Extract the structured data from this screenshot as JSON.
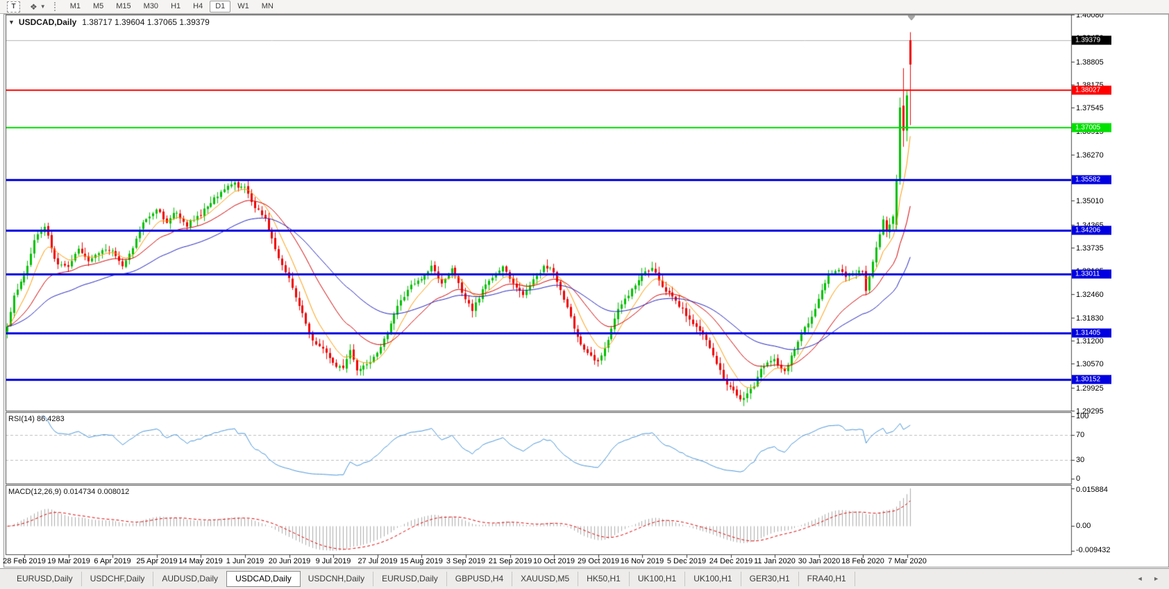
{
  "toolbar": {
    "text_tool_label": "T",
    "indicator_icon": "arrange-icon",
    "dropdown_caret": "caret-down-icon",
    "timeframes": [
      "M1",
      "M5",
      "M15",
      "M30",
      "H1",
      "H4",
      "D1",
      "W1",
      "MN"
    ],
    "active_timeframe": "D1"
  },
  "chart": {
    "title_symbol": "USDCAD,Daily",
    "title_ohlc": "1.38717 1.39604 1.37065 1.39379"
  },
  "price_axis": {
    "ticks": [
      "1.40080",
      "1.39450",
      "1.38805",
      "1.38175",
      "1.37545",
      "1.36915",
      "1.36270",
      "1.35640",
      "1.35010",
      "1.34365",
      "1.33735",
      "1.33105",
      "1.32460",
      "1.31830",
      "1.31200",
      "1.30570",
      "1.29925",
      "1.29295"
    ],
    "tick_values": [
      1.4008,
      1.3945,
      1.38805,
      1.38175,
      1.37545,
      1.36915,
      1.3627,
      1.3564,
      1.3501,
      1.34365,
      1.33735,
      1.33105,
      1.3246,
      1.3183,
      1.312,
      1.3057,
      1.29925,
      1.29295
    ],
    "current_price_badge": {
      "label": "1.39379",
      "value": 1.39379,
      "bg": "#000000"
    }
  },
  "chart_data": {
    "type": "candlestick",
    "symbol": "USDCAD",
    "timeframe": "Daily",
    "last_ohlc": {
      "open": 1.38717,
      "high": 1.39604,
      "low": 1.37065,
      "close": 1.39379
    },
    "x_labels": [
      "28 Feb 2019",
      "19 Mar 2019",
      "6 Apr 2019",
      "25 Apr 2019",
      "14 May 2019",
      "1 Jun 2019",
      "20 Jun 2019",
      "9 Jul 2019",
      "27 Jul 2019",
      "15 Aug 2019",
      "3 Sep 2019",
      "21 Sep 2019",
      "10 Oct 2019",
      "29 Oct 2019",
      "16 Nov 2019",
      "5 Dec 2019",
      "24 Dec 2019",
      "11 Jan 2020",
      "30 Jan 2020",
      "18 Feb 2020",
      "7 Mar 2020"
    ],
    "y_range": [
      1.29295,
      1.4008
    ],
    "candle_count": 267,
    "bull_color": "#00C000",
    "bear_color": "#F00000",
    "current_price_line_color": "#B4B4B4",
    "close_path_anchors": [
      [
        0,
        1.317
      ],
      [
        2,
        1.3245
      ],
      [
        5,
        1.33
      ],
      [
        8,
        1.3385
      ],
      [
        11,
        1.343
      ],
      [
        14,
        1.3345
      ],
      [
        18,
        1.332
      ],
      [
        21,
        1.3372
      ],
      [
        24,
        1.334
      ],
      [
        28,
        1.3372
      ],
      [
        31,
        1.336
      ],
      [
        34,
        1.3325
      ],
      [
        38,
        1.34
      ],
      [
        41,
        1.3452
      ],
      [
        44,
        1.3478
      ],
      [
        47,
        1.3442
      ],
      [
        50,
        1.3468
      ],
      [
        53,
        1.3425
      ],
      [
        56,
        1.3452
      ],
      [
        60,
        1.3492
      ],
      [
        63,
        1.3522
      ],
      [
        67,
        1.3552
      ],
      [
        70,
        1.3538
      ],
      [
        73,
        1.3482
      ],
      [
        76,
        1.3448
      ],
      [
        79,
        1.3372
      ],
      [
        83,
        1.3292
      ],
      [
        86,
        1.3212
      ],
      [
        89,
        1.3142
      ],
      [
        92,
        1.3112
      ],
      [
        96,
        1.3062
      ],
      [
        99,
        1.3048
      ],
      [
        101,
        1.3092
      ],
      [
        103,
        1.3038
      ],
      [
        106,
        1.3052
      ],
      [
        109,
        1.3088
      ],
      [
        112,
        1.3142
      ],
      [
        115,
        1.3218
      ],
      [
        118,
        1.3262
      ],
      [
        122,
        1.3292
      ],
      [
        125,
        1.3328
      ],
      [
        128,
        1.3272
      ],
      [
        131,
        1.3318
      ],
      [
        134,
        1.3252
      ],
      [
        137,
        1.3208
      ],
      [
        140,
        1.3258
      ],
      [
        143,
        1.3292
      ],
      [
        146,
        1.3322
      ],
      [
        149,
        1.3278
      ],
      [
        152,
        1.3248
      ],
      [
        155,
        1.3292
      ],
      [
        158,
        1.3322
      ],
      [
        161,
        1.3312
      ],
      [
        164,
        1.3232
      ],
      [
        167,
        1.3152
      ],
      [
        170,
        1.3092
      ],
      [
        174,
        1.3062
      ],
      [
        177,
        1.3132
      ],
      [
        180,
        1.3202
      ],
      [
        183,
        1.3252
      ],
      [
        187,
        1.3302
      ],
      [
        190,
        1.3312
      ],
      [
        193,
        1.3272
      ],
      [
        196,
        1.3232
      ],
      [
        200,
        1.3182
      ],
      [
        203,
        1.3162
      ],
      [
        206,
        1.3112
      ],
      [
        209,
        1.3062
      ],
      [
        213,
        1.2988
      ],
      [
        216,
        1.2962
      ],
      [
        219,
        1.2988
      ],
      [
        222,
        1.3042
      ],
      [
        226,
        1.3068
      ],
      [
        229,
        1.3042
      ],
      [
        232,
        1.3092
      ],
      [
        235,
        1.3158
      ],
      [
        239,
        1.3232
      ],
      [
        242,
        1.3292
      ],
      [
        245,
        1.3312
      ],
      [
        248,
        1.3292
      ],
      [
        252,
        1.3308
      ],
      [
        253,
        1.3252
      ],
      [
        255,
        1.3332
      ],
      [
        257,
        1.3402
      ],
      [
        258,
        1.3448
      ],
      [
        259,
        1.3418
      ],
      [
        260,
        1.3442
      ],
      [
        261,
        1.3462
      ],
      [
        262,
        1.3555
      ],
      [
        263,
        1.3755
      ],
      [
        264,
        1.3692
      ],
      [
        265,
        1.3788
      ],
      [
        266,
        1.3938
      ]
    ],
    "final_candles": {
      "262": [
        1.3435,
        1.3572,
        1.342,
        1.3555,
        "g"
      ],
      "263": [
        1.3555,
        1.3782,
        1.3545,
        1.3755,
        "g"
      ],
      "264": [
        1.376,
        1.3862,
        1.3648,
        1.3692,
        "r"
      ],
      "265": [
        1.3692,
        1.3802,
        1.3663,
        1.3788,
        "g"
      ],
      "266": [
        1.3872,
        1.396,
        1.3707,
        1.3938,
        "r"
      ]
    },
    "horizontal_levels": [
      {
        "price": 1.38027,
        "label": "1.38027",
        "color": "#FF0000",
        "width": 2
      },
      {
        "price": 1.37005,
        "label": "1.37005",
        "color": "#00E000",
        "width": 2
      },
      {
        "price": 1.35582,
        "label": "1.35582",
        "color": "#0000E0",
        "width": 3
      },
      {
        "price": 1.34206,
        "label": "1.34206",
        "color": "#0000E0",
        "width": 3
      },
      {
        "price": 1.33011,
        "label": "1.33011",
        "color": "#0000E0",
        "width": 3
      },
      {
        "price": 1.31405,
        "label": "1.31405",
        "color": "#0000E0",
        "width": 3
      },
      {
        "price": 1.30152,
        "label": "1.30152",
        "color": "#0000E0",
        "width": 3
      }
    ],
    "moving_averages": [
      {
        "period": 8,
        "color": "#FF9900"
      },
      {
        "period": 22,
        "color": "#D40000"
      },
      {
        "period": 48,
        "color": "#2020C0"
      }
    ],
    "rsi": {
      "label": "RSI(14) 86.4283",
      "period": 14,
      "last_value": 86.4283,
      "levels": [
        70,
        30
      ],
      "scale_labels": [
        "100",
        "70",
        "30",
        "0"
      ],
      "scale_values": [
        100,
        70,
        30,
        0
      ],
      "color": "#4795DB"
    },
    "macd": {
      "label": "MACD(12,26,9) 0.014734 0.008012",
      "fast": 12,
      "slow": 26,
      "signal_period": 9,
      "macd_value": 0.014734,
      "signal_value": 0.008012,
      "scale_top": "0.015884",
      "scale_zero": "0.00",
      "scale_bottom": "-0.009432",
      "histogram_color": "#ABABAB",
      "signal_color": "#E00000"
    }
  },
  "tabs": {
    "items": [
      "EURUSD,Daily",
      "USDCHF,Daily",
      "AUDUSD,Daily",
      "USDCAD,Daily",
      "USDCNH,Daily",
      "EURUSD,Daily",
      "GBPUSD,H4",
      "XAUUSD,M5",
      "HK50,H1",
      "UK100,H1",
      "UK100,H1",
      "GER30,H1",
      "FRA40,H1"
    ],
    "active_index": 3,
    "scroll_icons": "◄ ►"
  }
}
